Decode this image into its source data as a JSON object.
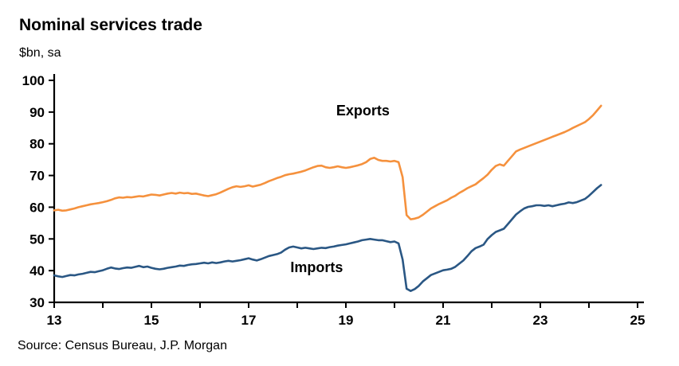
{
  "header": {
    "title": "Nominal services trade",
    "units": "$bn, sa"
  },
  "footer": {
    "source": "Source: Census Bureau, J.P. Morgan"
  },
  "chart_data": {
    "type": "line",
    "title": "Nominal services trade",
    "ylabel": "$bn, sa",
    "xlabel": "",
    "x_unit": "year (two-digit, 2013-2025), monthly observations",
    "xlim": [
      13,
      25
    ],
    "ylim": [
      30,
      100
    ],
    "yticks": [
      30,
      40,
      50,
      60,
      70,
      80,
      90,
      100
    ],
    "xticks": [
      13,
      14,
      15,
      16,
      17,
      18,
      19,
      20,
      21,
      22,
      23,
      24,
      25
    ],
    "xtick_labels": [
      13,
      15,
      17,
      19,
      21,
      23,
      25
    ],
    "grid": false,
    "legend_position": "inline-labels",
    "axis_color": "#000000",
    "x_start": 13.0,
    "x_step": 0.0833333,
    "series": [
      {
        "name": "Exports",
        "color": "#F5913D",
        "label_x": 19.35,
        "label_y": 89,
        "values": [
          59.0,
          59.2,
          58.9,
          59.0,
          59.3,
          59.6,
          60.0,
          60.3,
          60.6,
          60.9,
          61.1,
          61.3,
          61.6,
          61.9,
          62.3,
          62.8,
          63.1,
          63.0,
          63.2,
          63.1,
          63.3,
          63.5,
          63.4,
          63.7,
          64.0,
          63.9,
          63.7,
          64.0,
          64.3,
          64.5,
          64.3,
          64.6,
          64.4,
          64.5,
          64.2,
          64.3,
          64.0,
          63.7,
          63.5,
          63.8,
          64.1,
          64.6,
          65.2,
          65.8,
          66.3,
          66.6,
          66.4,
          66.6,
          66.9,
          66.5,
          66.8,
          67.1,
          67.6,
          68.2,
          68.7,
          69.2,
          69.6,
          70.1,
          70.4,
          70.6,
          70.9,
          71.2,
          71.6,
          72.1,
          72.6,
          73.0,
          73.1,
          72.6,
          72.4,
          72.6,
          72.9,
          72.6,
          72.4,
          72.6,
          72.9,
          73.2,
          73.6,
          74.2,
          75.2,
          75.6,
          74.9,
          74.6,
          74.6,
          74.4,
          74.6,
          74.2,
          69.5,
          57.5,
          56.2,
          56.4,
          56.8,
          57.6,
          58.6,
          59.6,
          60.3,
          61.0,
          61.6,
          62.2,
          63.0,
          63.6,
          64.5,
          65.2,
          66.0,
          66.6,
          67.2,
          68.2,
          69.2,
          70.3,
          71.8,
          73.0,
          73.5,
          73.1,
          74.6,
          76.1,
          77.6,
          78.2,
          78.7,
          79.2,
          79.7,
          80.2,
          80.7,
          81.2,
          81.7,
          82.2,
          82.7,
          83.2,
          83.7,
          84.3,
          85.0,
          85.6,
          86.2,
          86.8,
          87.8,
          89.0,
          90.5,
          92.0
        ]
      },
      {
        "name": "Imports",
        "color": "#2A5784",
        "label_x": 18.4,
        "label_y": 39.5,
        "values": [
          38.5,
          38.2,
          38.0,
          38.3,
          38.6,
          38.5,
          38.8,
          39.0,
          39.3,
          39.6,
          39.5,
          39.8,
          40.1,
          40.6,
          41.0,
          40.7,
          40.5,
          40.8,
          41.0,
          40.9,
          41.2,
          41.5,
          41.1,
          41.3,
          40.9,
          40.6,
          40.4,
          40.6,
          40.9,
          41.1,
          41.3,
          41.6,
          41.5,
          41.8,
          42.0,
          42.1,
          42.3,
          42.5,
          42.3,
          42.6,
          42.4,
          42.6,
          42.9,
          43.1,
          42.9,
          43.1,
          43.3,
          43.6,
          43.9,
          43.5,
          43.2,
          43.6,
          44.1,
          44.6,
          44.9,
          45.2,
          45.7,
          46.6,
          47.3,
          47.6,
          47.3,
          47.0,
          47.2,
          47.0,
          46.8,
          47.0,
          47.2,
          47.1,
          47.4,
          47.6,
          47.9,
          48.1,
          48.3,
          48.6,
          48.9,
          49.2,
          49.6,
          49.8,
          50.0,
          49.8,
          49.6,
          49.6,
          49.3,
          49.0,
          49.2,
          48.6,
          43.5,
          34.3,
          33.6,
          34.2,
          35.2,
          36.6,
          37.6,
          38.6,
          39.1,
          39.6,
          40.1,
          40.3,
          40.6,
          41.2,
          42.2,
          43.2,
          44.6,
          46.1,
          47.1,
          47.6,
          48.2,
          50.0,
          51.2,
          52.2,
          52.7,
          53.2,
          54.7,
          56.2,
          57.7,
          58.7,
          59.6,
          60.1,
          60.3,
          60.6,
          60.6,
          60.4,
          60.6,
          60.3,
          60.6,
          60.9,
          61.1,
          61.5,
          61.3,
          61.6,
          62.1,
          62.6,
          63.6,
          64.8,
          66.0,
          67.0
        ]
      }
    ]
  }
}
